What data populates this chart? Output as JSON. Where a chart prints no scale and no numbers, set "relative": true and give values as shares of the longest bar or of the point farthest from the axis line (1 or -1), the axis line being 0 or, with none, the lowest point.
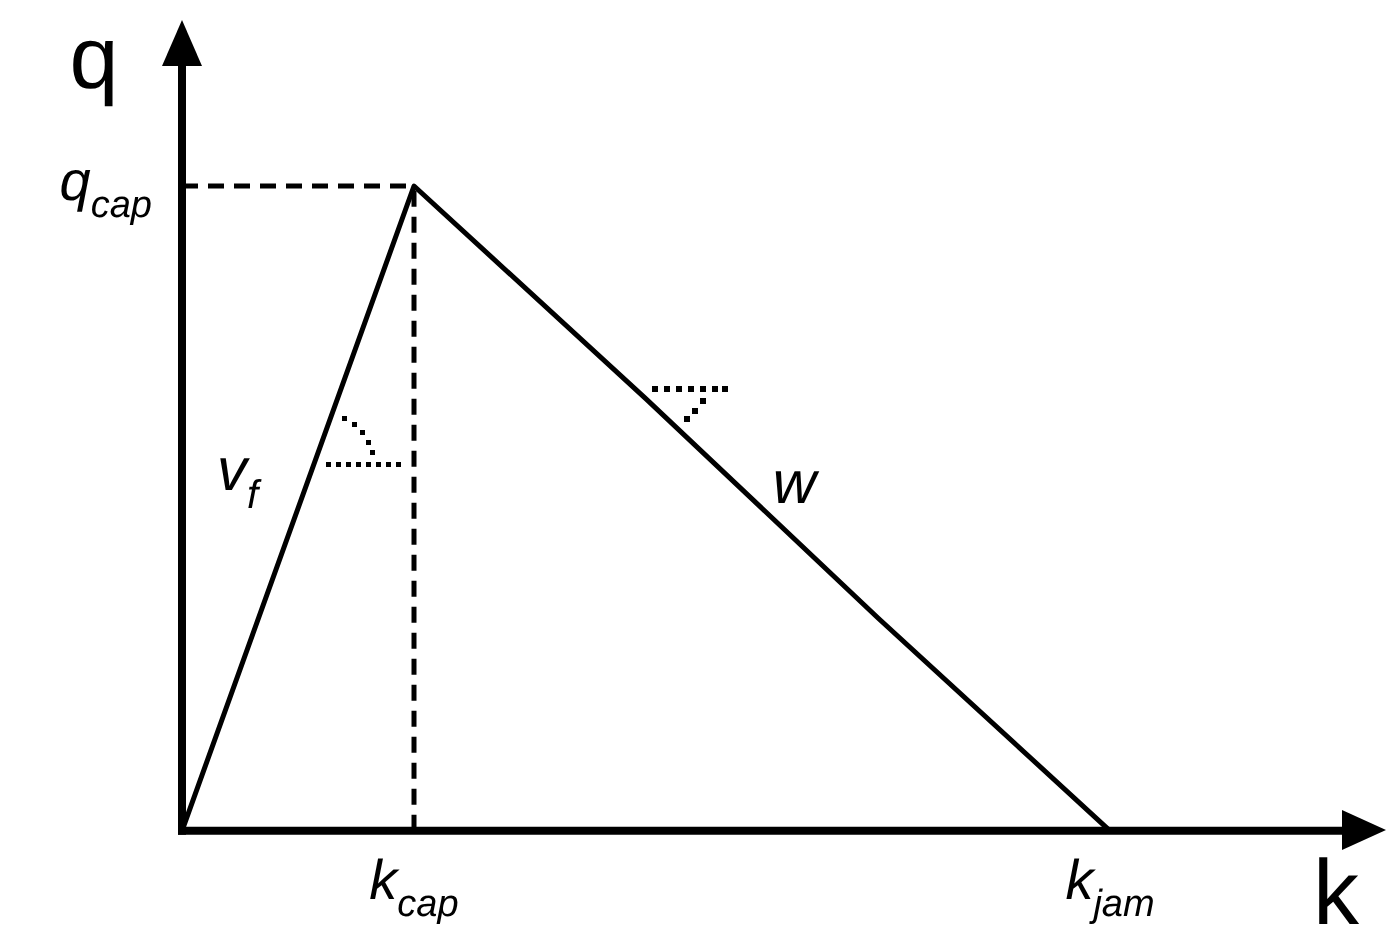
{
  "chart_data": {
    "type": "line",
    "xlabel": "k",
    "ylabel": "q",
    "relative": true,
    "marker": "none",
    "categories": [
      null,
      "k$_{cap}$",
      null,
      null,
      "k$_{jam}$"
    ],
    "series": [
      {
        "color": "#000000",
        "values": [
          0,
          1,
          0.67,
          0.33,
          0
        ]
      }
    ],
    "ref_lines": [
      {
        "axis": "y",
        "value": 1,
        "label": "q$_{cap}$",
        "line_style": "dashed",
        "color": "#000000"
      },
      {
        "axis": "x",
        "value": "k$_{cap}$",
        "line_style": "dashed",
        "color": "#000000"
      }
    ],
    "annotations": [
      "v$_{f}$",
      "w"
    ]
  }
}
